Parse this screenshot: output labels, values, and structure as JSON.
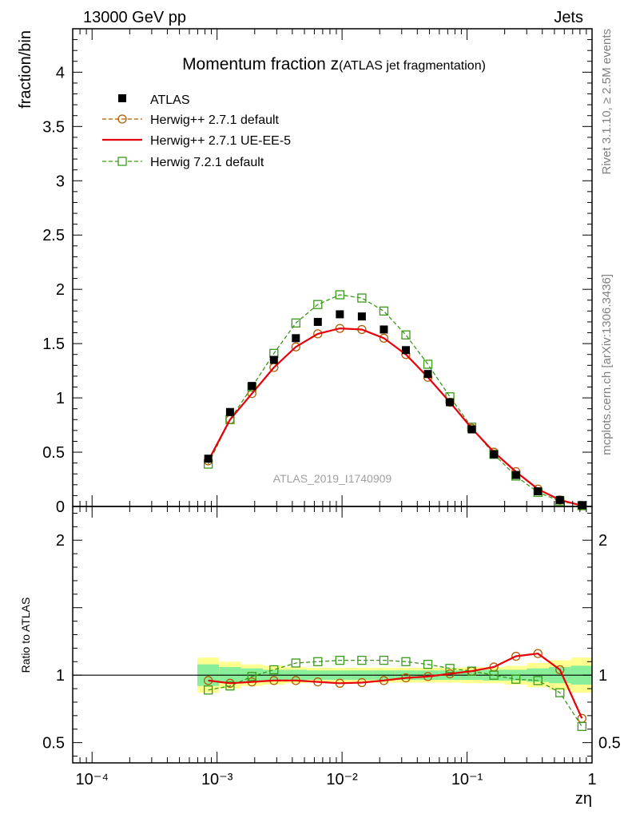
{
  "header": {
    "left": "13000 GeV pp",
    "right": "Jets"
  },
  "side_labels": {
    "top": "Rivet 3.1.10, ≥ 2.5M events",
    "bottom": "mcplots.cern.ch [arXiv:1306.3436]"
  },
  "watermark": "ATLAS_2019_I1740909",
  "chart_data": [
    {
      "panel": "main",
      "type": "line",
      "title": "Momentum fraction z",
      "subtitle": "(ATLAS jet fragmentation)",
      "xlabel": "zη",
      "ylabel": "fraction/bin",
      "xscale": "log",
      "xlim": [
        7e-05,
        1.0
      ],
      "ylim": [
        0,
        4.4
      ],
      "yticks": [
        0,
        0.5,
        1,
        1.5,
        2,
        2.5,
        3,
        3.5,
        4
      ],
      "ytick_labels": [
        "0",
        "0.5",
        "1",
        "1.5",
        "2",
        "2.5",
        "3",
        "3.5",
        "4"
      ],
      "xticks": [
        0.0001,
        0.001,
        0.01,
        0.1,
        1
      ],
      "xtick_labels": [
        "10⁻⁴",
        "10⁻³",
        "10⁻²",
        "10⁻¹",
        "1"
      ],
      "legend_position": "top-left",
      "x": [
        0.00085,
        0.00127,
        0.0019,
        0.00285,
        0.00427,
        0.0064,
        0.0096,
        0.0144,
        0.0216,
        0.0324,
        0.0486,
        0.0729,
        0.109,
        0.164,
        0.246,
        0.369,
        0.553,
        0.83
      ],
      "series": [
        {
          "name": "ATLAS",
          "style": "data",
          "color": "#000000",
          "values": [
            0.44,
            0.87,
            1.11,
            1.35,
            1.55,
            1.7,
            1.77,
            1.75,
            1.63,
            1.44,
            1.22,
            0.96,
            0.71,
            0.48,
            0.29,
            0.14,
            0.06,
            0.012
          ]
        },
        {
          "name": "Herwig++ 2.7.1 default",
          "style": "circle-dashed",
          "color": "#b45a00",
          "values": [
            0.42,
            0.8,
            1.04,
            1.28,
            1.47,
            1.59,
            1.64,
            1.63,
            1.55,
            1.4,
            1.19,
            0.96,
            0.72,
            0.5,
            0.32,
            0.16,
            0.06,
            0.008
          ]
        },
        {
          "name": "Herwig++ 2.7.1 UE-EE-5",
          "style": "solid",
          "color": "#e8000b",
          "values": [
            0.42,
            0.8,
            1.04,
            1.28,
            1.47,
            1.59,
            1.64,
            1.63,
            1.55,
            1.4,
            1.19,
            0.96,
            0.72,
            0.5,
            0.32,
            0.16,
            0.06,
            0.008
          ]
        },
        {
          "name": "Herwig 7.2.1 default",
          "style": "square-dashed",
          "color": "#3a9a1a",
          "values": [
            0.39,
            0.8,
            1.1,
            1.41,
            1.69,
            1.86,
            1.95,
            1.92,
            1.8,
            1.58,
            1.31,
            1.01,
            0.73,
            0.48,
            0.28,
            0.13,
            0.05,
            0.007
          ]
        }
      ]
    },
    {
      "panel": "ratio",
      "type": "line",
      "ylabel": "Ratio to ATLAS",
      "xscale": "log",
      "xlim": [
        7e-05,
        1.0
      ],
      "ylim": [
        0.35,
        2.25
      ],
      "yticks": [
        0.5,
        1,
        2
      ],
      "ytick_labels": [
        "0.5",
        "1",
        "2"
      ],
      "x": [
        0.00085,
        0.00127,
        0.0019,
        0.00285,
        0.00427,
        0.0064,
        0.0096,
        0.0144,
        0.0216,
        0.0324,
        0.0486,
        0.0729,
        0.109,
        0.164,
        0.246,
        0.369,
        0.553,
        0.83
      ],
      "band_inner": [
        0.08,
        0.06,
        0.05,
        0.04,
        0.04,
        0.035,
        0.035,
        0.035,
        0.035,
        0.035,
        0.035,
        0.035,
        0.035,
        0.04,
        0.04,
        0.05,
        0.06,
        0.07
      ],
      "band_outer": [
        0.13,
        0.1,
        0.08,
        0.07,
        0.06,
        0.055,
        0.055,
        0.055,
        0.055,
        0.055,
        0.055,
        0.055,
        0.06,
        0.06,
        0.07,
        0.09,
        0.11,
        0.13
      ],
      "series": [
        {
          "name": "Herwig++ 2.7.1 default",
          "style": "circle-dashed",
          "color": "#b45a00",
          "values": [
            0.96,
            0.94,
            0.95,
            0.96,
            0.96,
            0.95,
            0.94,
            0.945,
            0.96,
            0.98,
            0.99,
            1.01,
            1.03,
            1.06,
            1.14,
            1.16,
            1.04,
            0.68
          ]
        },
        {
          "name": "Herwig++ 2.7.1 UE-EE-5",
          "style": "solid",
          "color": "#e8000b",
          "values": [
            0.96,
            0.94,
            0.95,
            0.96,
            0.96,
            0.95,
            0.94,
            0.945,
            0.96,
            0.98,
            0.99,
            1.01,
            1.03,
            1.06,
            1.14,
            1.16,
            1.04,
            0.68
          ]
        },
        {
          "name": "Herwig 7.2.1 default",
          "style": "square-dashed",
          "color": "#3a9a1a",
          "values": [
            0.89,
            0.92,
            0.99,
            1.04,
            1.09,
            1.1,
            1.11,
            1.11,
            1.11,
            1.1,
            1.08,
            1.05,
            1.03,
            1.0,
            0.97,
            0.96,
            0.87,
            0.62
          ]
        }
      ]
    }
  ]
}
